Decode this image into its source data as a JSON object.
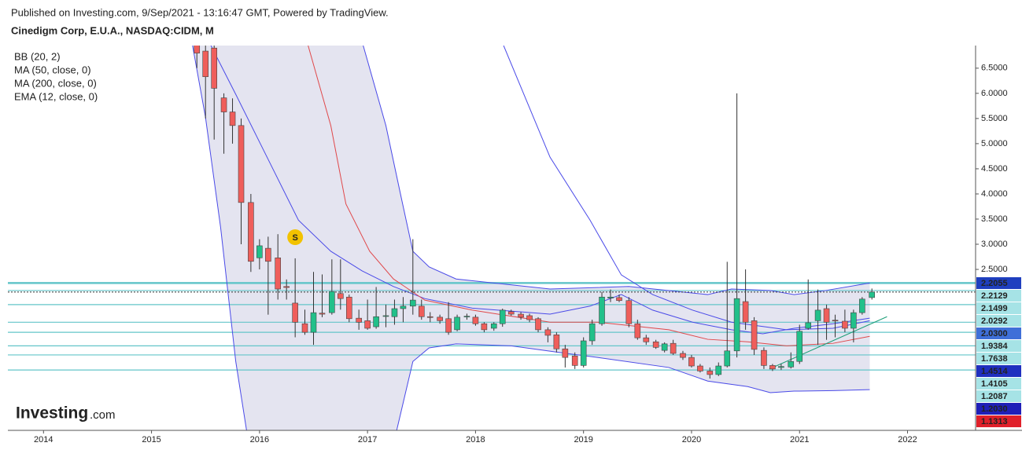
{
  "header": {
    "published": "Published on Investing.com, 9/Sep/2021 - 13:16:47 GMT, Powered by TradingView.",
    "symbol": "Cinedigm Corp, E.U.A., NASDAQ:CIDM, M"
  },
  "logo": {
    "brand": "Investing",
    "suffix": ".com"
  },
  "chart_data": {
    "type": "candlestick",
    "legend": [
      "BB (20, 2)",
      "MA (50, close, 0)",
      "MA (200, close, 0)",
      "EMA (12, close, 0)"
    ],
    "x": [
      2015.42,
      2015.5,
      2015.58,
      2015.67,
      2015.75,
      2015.83,
      2015.92,
      2016.0,
      2016.08,
      2016.17,
      2016.25,
      2016.33,
      2016.42,
      2016.5,
      2016.58,
      2016.67,
      2016.75,
      2016.83,
      2016.92,
      2017.0,
      2017.08,
      2017.17,
      2017.25,
      2017.33,
      2017.42,
      2017.5,
      2017.58,
      2017.67,
      2017.75,
      2017.83,
      2017.92,
      2018.0,
      2018.08,
      2018.17,
      2018.25,
      2018.33,
      2018.42,
      2018.5,
      2018.58,
      2018.67,
      2018.75,
      2018.83,
      2018.92,
      2019.0,
      2019.08,
      2019.17,
      2019.25,
      2019.33,
      2019.42,
      2019.5,
      2019.58,
      2019.67,
      2019.75,
      2019.83,
      2019.92,
      2020.0,
      2020.08,
      2020.17,
      2020.25,
      2020.33,
      2020.42,
      2020.5,
      2020.58,
      2020.67,
      2020.75,
      2020.83,
      2020.92,
      2021.0,
      2021.08,
      2021.17,
      2021.25,
      2021.33,
      2021.42,
      2021.5,
      2021.58,
      2021.67
    ],
    "open": [
      7.3,
      6.84,
      6.9,
      5.91,
      5.63,
      5.36,
      3.83,
      2.73,
      2.92,
      2.73,
      2.16,
      1.83,
      1.42,
      1.25,
      1.63,
      1.64,
      2.02,
      1.95,
      1.53,
      1.48,
      1.36,
      1.57,
      1.56,
      1.72,
      1.77,
      1.77,
      1.56,
      1.55,
      1.52,
      1.3,
      1.56,
      1.55,
      1.42,
      1.33,
      1.42,
      1.66,
      1.61,
      1.58,
      1.52,
      1.3,
      1.2,
      0.92,
      0.78,
      0.59,
      1.08,
      1.42,
      1.93,
      1.94,
      1.88,
      1.42,
      1.14,
      1.06,
      0.89,
      1.03,
      0.83,
      0.75,
      0.58,
      0.48,
      0.41,
      0.58,
      0.88,
      1.86,
      1.48,
      0.89,
      0.59,
      0.55,
      0.56,
      0.67,
      1.33,
      1.48,
      1.72,
      1.49,
      1.47,
      1.33,
      1.64,
      1.94
    ],
    "high": [
      7.6,
      7.0,
      7.1,
      6.0,
      5.9,
      5.5,
      4.0,
      3.1,
      3.15,
      3.2,
      2.3,
      2.72,
      1.7,
      2.45,
      2.4,
      2.7,
      2.7,
      2.0,
      1.7,
      1.9,
      2.15,
      1.8,
      1.9,
      1.95,
      3.1,
      1.9,
      1.65,
      1.6,
      1.85,
      1.6,
      1.62,
      1.6,
      1.45,
      1.45,
      1.72,
      1.7,
      1.65,
      1.62,
      1.55,
      1.35,
      1.25,
      1.0,
      0.85,
      1.15,
      1.5,
      2.05,
      2.1,
      2.0,
      1.95,
      1.5,
      1.2,
      1.1,
      1.05,
      1.1,
      0.88,
      0.8,
      0.62,
      0.55,
      0.65,
      2.65,
      6.0,
      2.5,
      1.55,
      0.95,
      0.62,
      0.62,
      0.85,
      1.4,
      2.3,
      2.1,
      1.8,
      1.6,
      1.7,
      1.7,
      1.95,
      2.12
    ],
    "low": [
      6.5,
      5.5,
      5.08,
      4.8,
      5.0,
      3.0,
      2.45,
      2.5,
      1.6,
      1.9,
      1.9,
      1.15,
      1.2,
      1.0,
      1.55,
      1.6,
      1.7,
      1.45,
      1.3,
      1.3,
      1.32,
      1.35,
      1.4,
      1.45,
      1.6,
      1.5,
      1.45,
      1.42,
      1.2,
      1.27,
      1.5,
      1.38,
      1.25,
      1.28,
      1.36,
      1.58,
      1.5,
      1.45,
      1.25,
      1.05,
      0.85,
      0.55,
      0.52,
      0.55,
      1.0,
      1.38,
      1.85,
      1.85,
      1.35,
      1.1,
      1.0,
      0.92,
      0.85,
      0.8,
      0.7,
      0.55,
      0.45,
      0.33,
      0.38,
      0.55,
      0.75,
      1.3,
      0.8,
      0.52,
      0.48,
      0.5,
      0.53,
      0.62,
      1.3,
      1.0,
      1.1,
      1.15,
      1.25,
      1.05,
      1.6,
      1.9
    ],
    "close": [
      6.8,
      6.33,
      6.1,
      5.63,
      5.36,
      3.83,
      2.66,
      2.97,
      2.66,
      2.11,
      2.14,
      1.45,
      1.25,
      1.64,
      1.61,
      2.06,
      1.92,
      1.52,
      1.45,
      1.33,
      1.56,
      1.58,
      1.72,
      1.77,
      1.89,
      1.56,
      1.55,
      1.48,
      1.25,
      1.55,
      1.57,
      1.42,
      1.3,
      1.42,
      1.69,
      1.61,
      1.55,
      1.5,
      1.3,
      1.19,
      0.92,
      0.75,
      0.59,
      1.08,
      1.42,
      1.95,
      1.95,
      1.88,
      1.42,
      1.14,
      1.06,
      0.95,
      1.02,
      0.83,
      0.75,
      0.58,
      0.48,
      0.41,
      0.58,
      0.88,
      1.92,
      1.45,
      0.91,
      0.59,
      0.52,
      0.57,
      0.67,
      1.27,
      1.44,
      1.69,
      1.45,
      1.48,
      1.33,
      1.64,
      1.91,
      2.05
    ],
    "up_color": "#22c08a",
    "down_color": "#ef5e5b",
    "wick_color": "#333333",
    "band_color": "#e4e4f0",
    "overlays": [
      {
        "color": "#4a4ae8",
        "x": [
          2016.96,
          2017.17,
          2017.31,
          2017.42,
          2017.57,
          2017.82,
          2018.69,
          2019.42,
          2020.15,
          2020.37,
          2020.73,
          2020.95,
          2021.24,
          2021.65
        ],
        "values": [
          6.95,
          5.36,
          3.95,
          2.86,
          2.55,
          2.31,
          2.11,
          2.16,
          2.0,
          2.11,
          2.08,
          2.0,
          2.08,
          2.23
        ]
      },
      {
        "color": "#4a4ae8",
        "x": [
          2015.38,
          2015.5,
          2015.64,
          2015.78,
          2015.88,
          null,
          2017.27,
          2017.42,
          2017.57,
          2017.82,
          2018.33,
          2018.84,
          2019.13,
          2019.79,
          2020.15,
          2020.52,
          2020.73,
          2020.95,
          2021.31,
          2021.65
        ],
        "values": [
          6.95,
          5.52,
          3.33,
          0.67,
          -0.7,
          null,
          -0.7,
          0.67,
          0.94,
          1.02,
          0.98,
          0.83,
          0.75,
          0.55,
          0.28,
          0.17,
          0.05,
          0.08,
          0.09,
          0.11
        ]
      },
      {
        "color": "#4a4ae8",
        "x": [
          2015.55,
          2015.78,
          2016.07,
          2016.36,
          2016.66,
          2016.95,
          2017.24,
          2017.53,
          2017.97,
          2018.69,
          2019.06,
          2019.35,
          2019.64,
          2020.01,
          2020.37,
          2020.66,
          2020.95,
          2021.31,
          2021.65
        ],
        "values": [
          6.95,
          5.98,
          4.73,
          3.48,
          2.86,
          2.47,
          2.16,
          1.92,
          1.73,
          1.61,
          1.77,
          2.0,
          1.69,
          1.45,
          1.3,
          1.22,
          1.33,
          1.42,
          1.53
        ]
      },
      {
        "color": "#e0484a",
        "x": [
          2016.45,
          2016.66,
          2016.8,
          2017.02,
          2017.24,
          2017.53,
          2017.97,
          2018.69,
          2019.13,
          2019.79,
          2020.15,
          2020.52,
          2020.88,
          2021.31,
          2021.65
        ],
        "values": [
          6.95,
          5.36,
          3.8,
          2.86,
          2.31,
          1.89,
          1.69,
          1.45,
          1.45,
          1.3,
          1.11,
          1.06,
          0.98,
          1.03,
          1.17
        ]
      },
      {
        "color": "#4a4ae8",
        "x": [
          2018.26,
          2018.69,
          2019.06,
          2019.35,
          2019.64,
          2020.01,
          2020.37,
          2020.88,
          2021.31,
          2021.65
        ],
        "values": [
          6.95,
          4.73,
          3.48,
          2.39,
          2.0,
          1.69,
          1.45,
          1.3,
          1.33,
          1.48
        ]
      },
      {
        "color": "#1b9e77",
        "x": [
          2020.72,
          2021.81
        ],
        "values": [
          0.52,
          1.56
        ]
      }
    ],
    "levels": [
      2.23,
      2.08,
      1.8,
      1.45,
      1.25,
      0.98,
      0.8,
      0.5
    ],
    "level_color": "#63c5c9",
    "markers": [
      {
        "label": "S",
        "x": 2016.33,
        "y": 3.14,
        "color": "#f2c200"
      }
    ],
    "price_labels": [
      {
        "text": "2.2055",
        "color": "#1f3fbf",
        "text_color": "#ffffff"
      },
      {
        "text": "2.2129",
        "color": "#a6e3e6",
        "text_color": "#111111"
      },
      {
        "text": "2.1499",
        "color": "#a6e3e6",
        "text_color": "#111111"
      },
      {
        "text": "2.0292",
        "color": "#a6e3e6",
        "text_color": "#111111"
      },
      {
        "text": "2.0300",
        "color": "#3f6fd8",
        "text_color": "#ffffff"
      },
      {
        "text": "1.9384",
        "color": "#a6e3e6",
        "text_color": "#111111"
      },
      {
        "text": "1.7638",
        "color": "#a6e3e6",
        "text_color": "#111111"
      },
      {
        "text": "1.4514",
        "color": "#1f2fbf",
        "text_color": "#ffffff"
      },
      {
        "text": "1.4105",
        "color": "#a6e3e6",
        "text_color": "#111111"
      },
      {
        "text": "1.2087",
        "color": "#a6e3e6",
        "text_color": "#111111"
      },
      {
        "text": "1.2030",
        "color": "#1f1fb8",
        "text_color": "#ffffff"
      },
      {
        "text": "1.1313",
        "color": "#e0202a",
        "text_color": "#ffffff"
      }
    ],
    "xlim": [
      2013.67,
      2022.63
    ],
    "xticks": [
      2014,
      2015,
      2016,
      2017,
      2018,
      2019,
      2020,
      2021,
      2022
    ],
    "ylim": [
      -0.7,
      6.95
    ],
    "yticks": [
      {
        "value": 2.5,
        "label": "2.5000"
      },
      {
        "value": 3,
        "label": "3.0000"
      },
      {
        "value": 3.5,
        "label": "3.5000"
      },
      {
        "value": 4,
        "label": "4.0000"
      },
      {
        "value": 4.5,
        "label": "4.5000"
      },
      {
        "value": 5,
        "label": "5.0000"
      },
      {
        "value": 5.5,
        "label": "5.5000"
      },
      {
        "value": 6,
        "label": "6.0000"
      },
      {
        "value": 6.5,
        "label": "6.5000"
      }
    ]
  }
}
